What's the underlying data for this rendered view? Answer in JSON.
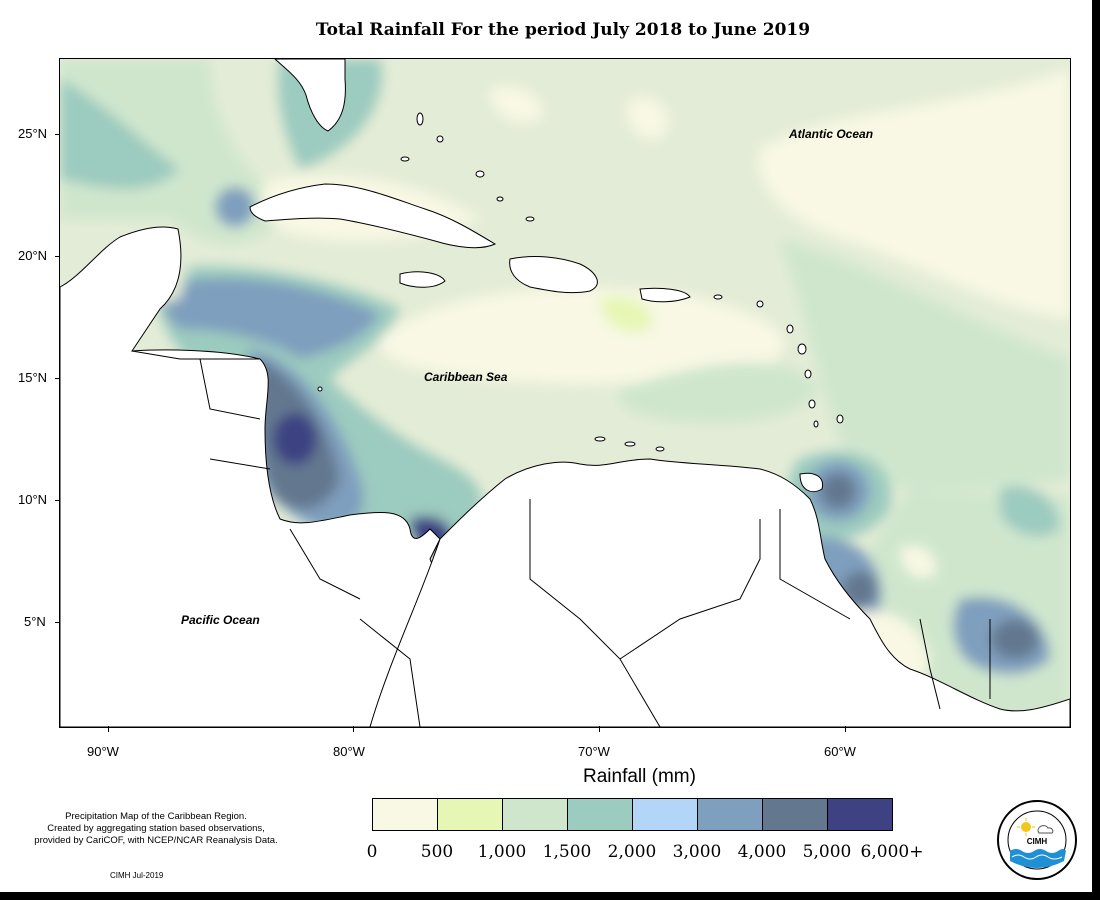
{
  "title": "Total Rainfall For the period July 2018 to June 2019",
  "axes": {
    "lat_ticks": [
      "25°N",
      "20°N",
      "15°N",
      "10°N",
      "5°N"
    ],
    "lon_ticks": [
      "90°W",
      "80°W",
      "70°W",
      "60°W"
    ]
  },
  "ocean_labels": {
    "atlantic": "Atlantic Ocean",
    "caribbean": "Caribbean Sea",
    "pacific": "Pacific Ocean"
  },
  "legend": {
    "title": "Rainfall (mm)",
    "colors": [
      "#f8f8e4",
      "#e6f7b5",
      "#cfe6cd",
      "#9ccbbf",
      "#b3d5f7",
      "#7f9fbe",
      "#63788f",
      "#3e4283"
    ],
    "labels": [
      "0",
      "500",
      "1,000",
      "1,500",
      "2,000",
      "3,000",
      "4,000",
      "5,000",
      "6,000+"
    ]
  },
  "notes": {
    "line1": "Precipitation Map of the Caribbean Region.",
    "line2": "Created by aggregating station based observations,",
    "line3": "provided by CariCOF, with NCEP/NCAR Reanalysis Data.",
    "credit": "CIMH Jul-2019"
  },
  "logo": {
    "name": "CIMH",
    "ring_text": "Caribbean Institute for Meteorology and Hydrology"
  }
}
